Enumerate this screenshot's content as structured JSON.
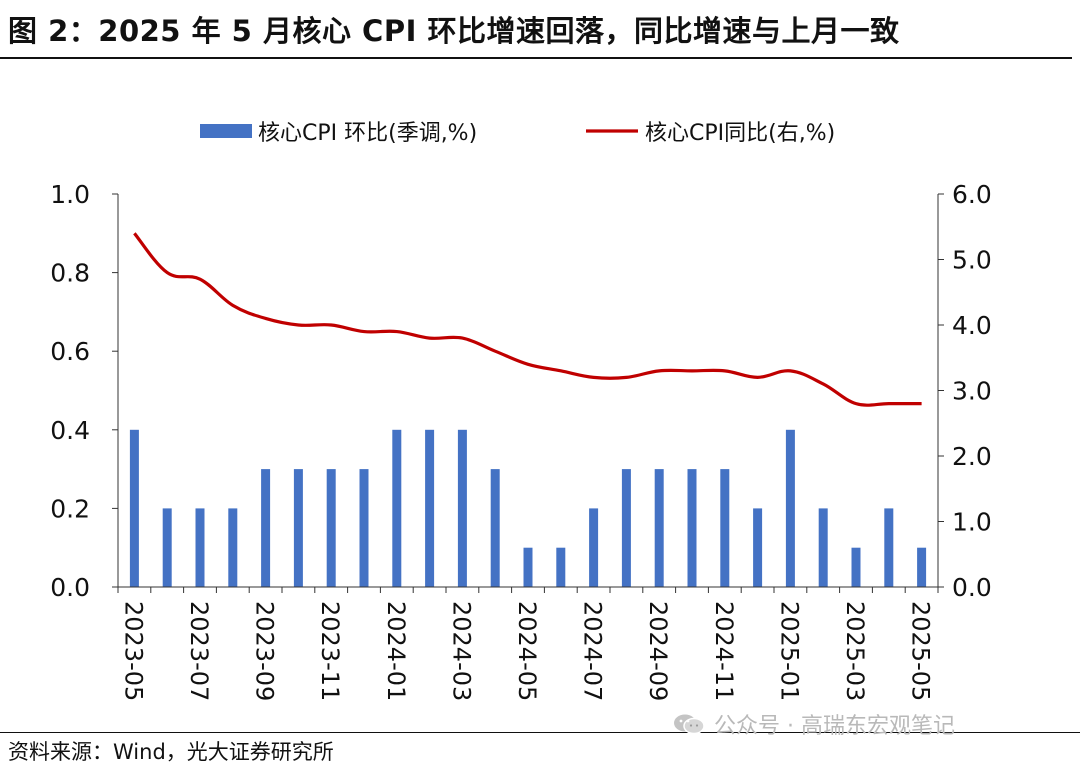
{
  "header": {
    "title": "图 2：2025 年 5 月核心 CPI 环比增速回落，同比增速与上月一致"
  },
  "footer": {
    "source": "资料来源：Wind，光大证券研究所",
    "watermark": "公众号 · 高瑞东宏观笔记",
    "watermark_icon": "wechat-icon"
  },
  "chart_data": {
    "type": "bar",
    "title": "",
    "xlabel": "",
    "ylabel": "",
    "categories": [
      "2023-05",
      "2023-06",
      "2023-07",
      "2023-08",
      "2023-09",
      "2023-10",
      "2023-11",
      "2023-12",
      "2024-01",
      "2024-02",
      "2024-03",
      "2024-04",
      "2024-05",
      "2024-06",
      "2024-07",
      "2024-08",
      "2024-09",
      "2024-10",
      "2024-11",
      "2024-12",
      "2025-01",
      "2025-02",
      "2025-03",
      "2025-04",
      "2025-05"
    ],
    "x_tick_labels": [
      "2023-05",
      "2023-07",
      "2023-09",
      "2023-11",
      "2024-01",
      "2024-03",
      "2024-05",
      "2024-07",
      "2024-09",
      "2024-11",
      "2025-01",
      "2025-03",
      "2025-05"
    ],
    "series": [
      {
        "name": "核心CPI 环比(季调,%)",
        "type": "bar",
        "axis": "left",
        "color": "#4472C4",
        "values": [
          0.4,
          0.2,
          0.2,
          0.2,
          0.3,
          0.3,
          0.3,
          0.3,
          0.4,
          0.4,
          0.4,
          0.3,
          0.1,
          0.1,
          0.2,
          0.3,
          0.3,
          0.3,
          0.3,
          0.2,
          0.4,
          0.2,
          0.1,
          0.2,
          0.1
        ]
      },
      {
        "name": "核心CPI同比(右,%)",
        "type": "line",
        "axis": "right",
        "color": "#C00000",
        "values": [
          5.4,
          4.8,
          4.7,
          4.3,
          4.1,
          4.0,
          4.0,
          3.9,
          3.9,
          3.8,
          3.8,
          3.6,
          3.4,
          3.3,
          3.2,
          3.2,
          3.3,
          3.3,
          3.3,
          3.2,
          3.3,
          3.1,
          2.8,
          2.8,
          2.8
        ]
      }
    ],
    "y_left": {
      "lim": [
        0,
        1.0
      ],
      "ticks": [
        "0.0",
        "0.2",
        "0.4",
        "0.6",
        "0.8",
        "1.0"
      ]
    },
    "y_right": {
      "lim": [
        0,
        6.0
      ],
      "ticks": [
        "0.0",
        "1.0",
        "2.0",
        "3.0",
        "4.0",
        "5.0",
        "6.0"
      ]
    },
    "grid": false,
    "legend_position": "top"
  }
}
